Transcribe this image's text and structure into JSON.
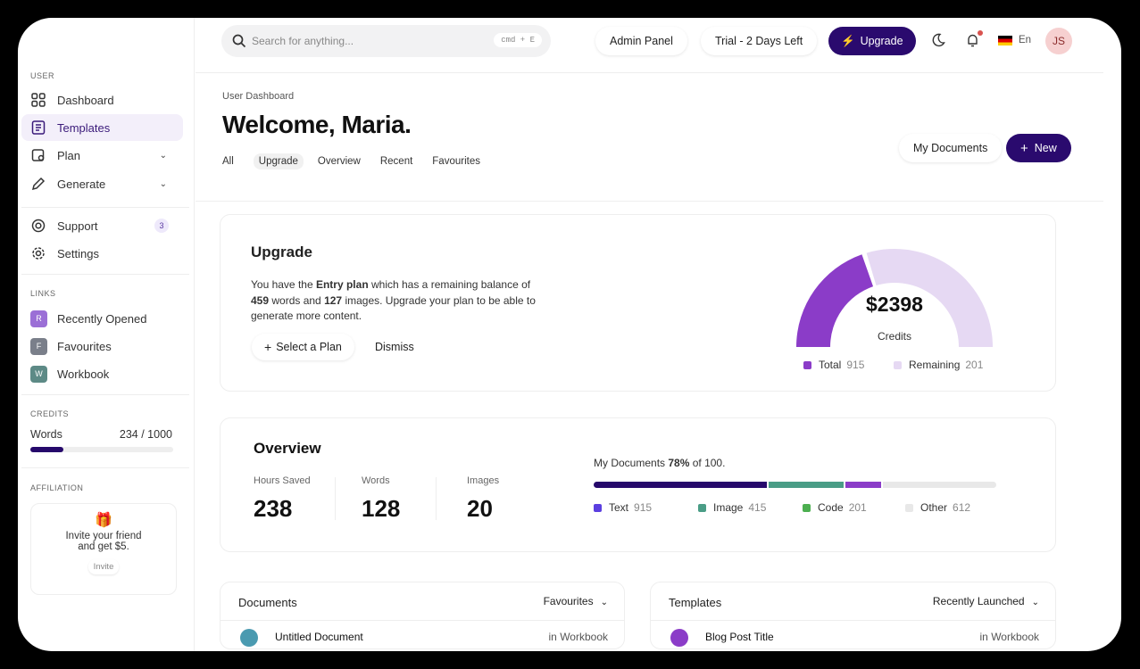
{
  "search": {
    "placeholder": "Search for anything...",
    "shortcut": "cmd + E"
  },
  "header": {
    "admin": "Admin Panel",
    "trial": "Trial - 2 Days Left",
    "upgrade": "Upgrade",
    "lang": "En",
    "avatar": "JS"
  },
  "sidebar": {
    "user_label": "USER",
    "items": [
      {
        "label": "Dashboard"
      },
      {
        "label": "Templates"
      },
      {
        "label": "Plan"
      },
      {
        "label": "Generate"
      },
      {
        "label": "Support",
        "badge": "3"
      },
      {
        "label": "Settings"
      }
    ],
    "links_label": "LINKS",
    "links": [
      {
        "initial": "R",
        "label": "Recently Opened",
        "color": "#9b6fd6"
      },
      {
        "initial": "F",
        "label": "Favourites",
        "color": "#7a7f8a"
      },
      {
        "initial": "W",
        "label": "Workbook",
        "color": "#5d8a86"
      }
    ],
    "credits_label": "CREDITS",
    "credits": {
      "label": "Words",
      "value": "234 / 1000",
      "fraction": 0.234
    },
    "affiliation_label": "AFFILIATION",
    "invite_text1": "Invite your friend",
    "invite_text2": "and get $5.",
    "invite_button": "Invite"
  },
  "page": {
    "breadcrumb": "User Dashboard",
    "title": "Welcome, Maria.",
    "tabs": [
      "All",
      "Upgrade",
      "Overview",
      "Recent",
      "Favourites"
    ],
    "my_documents": "My Documents",
    "new": "New"
  },
  "upgrade": {
    "title": "Upgrade",
    "t1": "You have the ",
    "plan": "Entry plan",
    "t2": " which has a remaining balance of",
    "words": "459",
    "t3": " words and ",
    "images": "127",
    "t4": " images. Upgrade your plan to be able to",
    "t5": "generate more content.",
    "select": "Select a Plan",
    "dismiss": "Dismiss",
    "gauge": {
      "value": "$2398",
      "label": "Credits",
      "fill_fraction": 0.4,
      "legend": [
        {
          "label": "Total",
          "value": "915",
          "color": "#8b3cc8"
        },
        {
          "label": "Remaining",
          "value": "201",
          "color": "#e6d9f3"
        }
      ]
    }
  },
  "overview": {
    "title": "Overview",
    "stats": [
      {
        "label": "Hours Saved",
        "value": "238"
      },
      {
        "label": "Words",
        "value": "128"
      },
      {
        "label": "Images",
        "value": "20"
      }
    ],
    "docs_t1": "My Documents ",
    "docs_pct": "78%",
    "docs_t2": " of 100.",
    "segments": [
      {
        "fraction": 0.435,
        "color": "#26096b"
      },
      {
        "fraction": 0.19,
        "color": "#4a9d86"
      },
      {
        "fraction": 0.09,
        "color": "#8b3cc8"
      },
      {
        "fraction": 0.285,
        "color": "#e8e8e8"
      }
    ],
    "legend": [
      {
        "label": "Text",
        "value": "915",
        "color": "#5b3fe0"
      },
      {
        "label": "Image",
        "value": "415",
        "color": "#4a9d86"
      },
      {
        "label": "Code",
        "value": "201",
        "color": "#4caf50"
      },
      {
        "label": "Other",
        "value": "612",
        "color": "#e8e8e8"
      }
    ]
  },
  "documents": {
    "title": "Documents",
    "filter": "Favourites",
    "row": {
      "name": "Untitled Document",
      "location": "in Workbook"
    }
  },
  "templates": {
    "title": "Templates",
    "filter": "Recently Launched",
    "row": {
      "name": "Blog Post Title",
      "location": "in Workbook"
    }
  }
}
